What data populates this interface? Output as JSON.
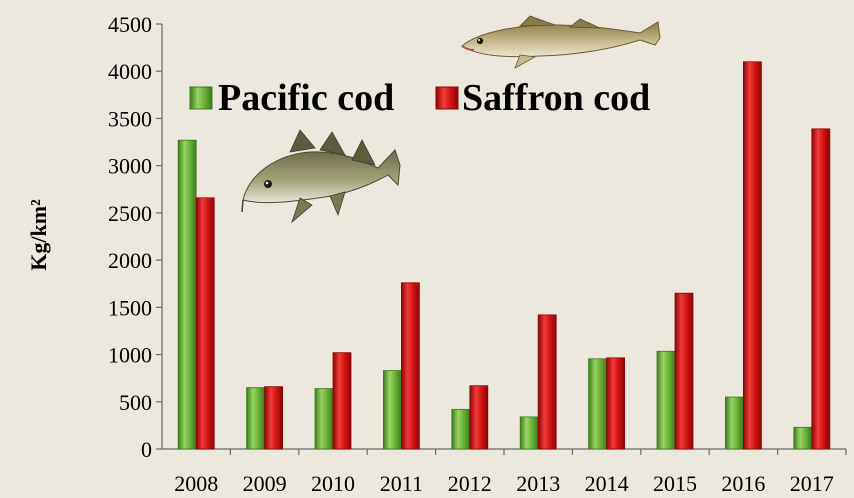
{
  "chart_data": {
    "type": "bar",
    "title": "",
    "xlabel": "",
    "ylabel": "Kg/km²",
    "ylim": [
      0,
      4500
    ],
    "ytick_step": 500,
    "grid": false,
    "legend_position": "top-center",
    "categories": [
      "2008",
      "2009",
      "2010",
      "2011",
      "2012",
      "2013",
      "2014",
      "2015",
      "2016",
      "2017"
    ],
    "series": [
      {
        "name": "Pacific cod",
        "color": "#6ab238",
        "values": [
          3270,
          650,
          640,
          830,
          420,
          340,
          955,
          1035,
          550,
          230
        ]
      },
      {
        "name": "Saffron cod",
        "color": "#d11414",
        "values": [
          2660,
          660,
          1020,
          1760,
          670,
          1420,
          965,
          1650,
          4100,
          3390
        ]
      }
    ]
  },
  "decorations": {
    "icons": [
      "pacific-cod-fish-icon",
      "saffron-cod-fish-icon"
    ]
  }
}
